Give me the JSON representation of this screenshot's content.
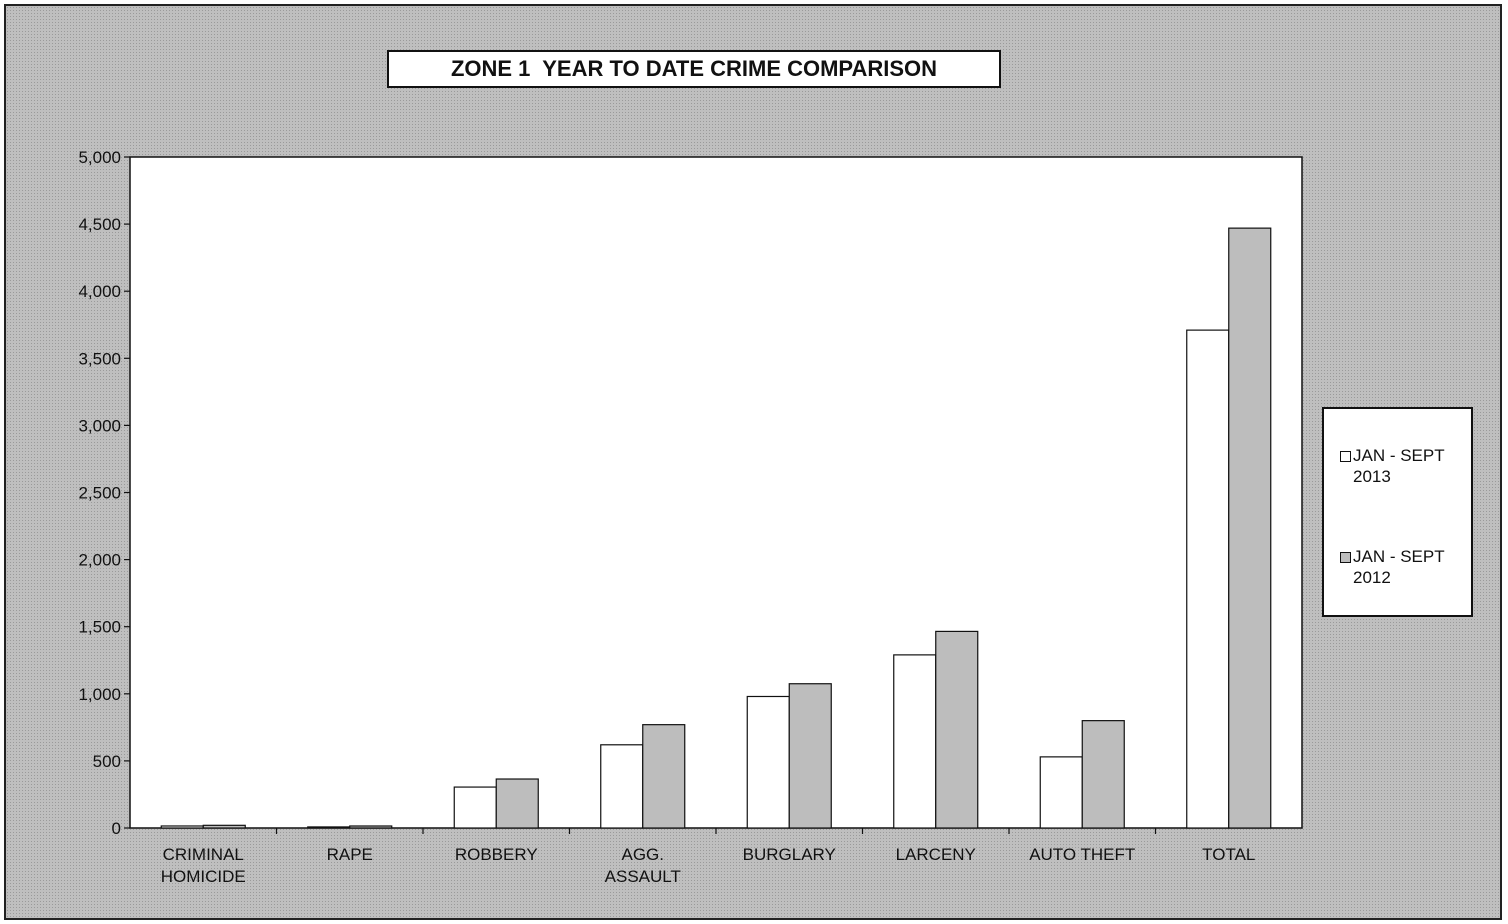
{
  "chart_data": {
    "type": "bar",
    "title": "ZONE 1  YEAR TO DATE CRIME COMPARISON",
    "categories": [
      "CRIMINAL\nHOMICIDE",
      "RAPE",
      "ROBBERY",
      "AGG.\nASSAULT",
      "BURGLARY",
      "LARCENY",
      "AUTO THEFT",
      "TOTAL"
    ],
    "series": [
      {
        "name": "JAN - SEPT 2013",
        "values": [
          15,
          8,
          305,
          620,
          980,
          1290,
          530,
          3710
        ],
        "color": "#ffffff"
      },
      {
        "name": "JAN - SEPT 2012",
        "values": [
          20,
          15,
          365,
          770,
          1075,
          1465,
          800,
          4470
        ],
        "color": "#bdbdbd"
      }
    ],
    "ylim": [
      0,
      5000
    ],
    "yticks": [
      "0",
      "500",
      "1,000",
      "1,500",
      "2,000",
      "2,500",
      "3,000",
      "3,500",
      "4,000",
      "4,500",
      "5,000"
    ],
    "xlabel": "",
    "ylabel": "",
    "legend_position": "right",
    "grid": false
  },
  "legend": {
    "items": [
      {
        "label": "JAN - SEPT\n2013",
        "color": "#ffffff"
      },
      {
        "label": "JAN - SEPT\n2012",
        "color": "#bdbdbd"
      }
    ]
  }
}
